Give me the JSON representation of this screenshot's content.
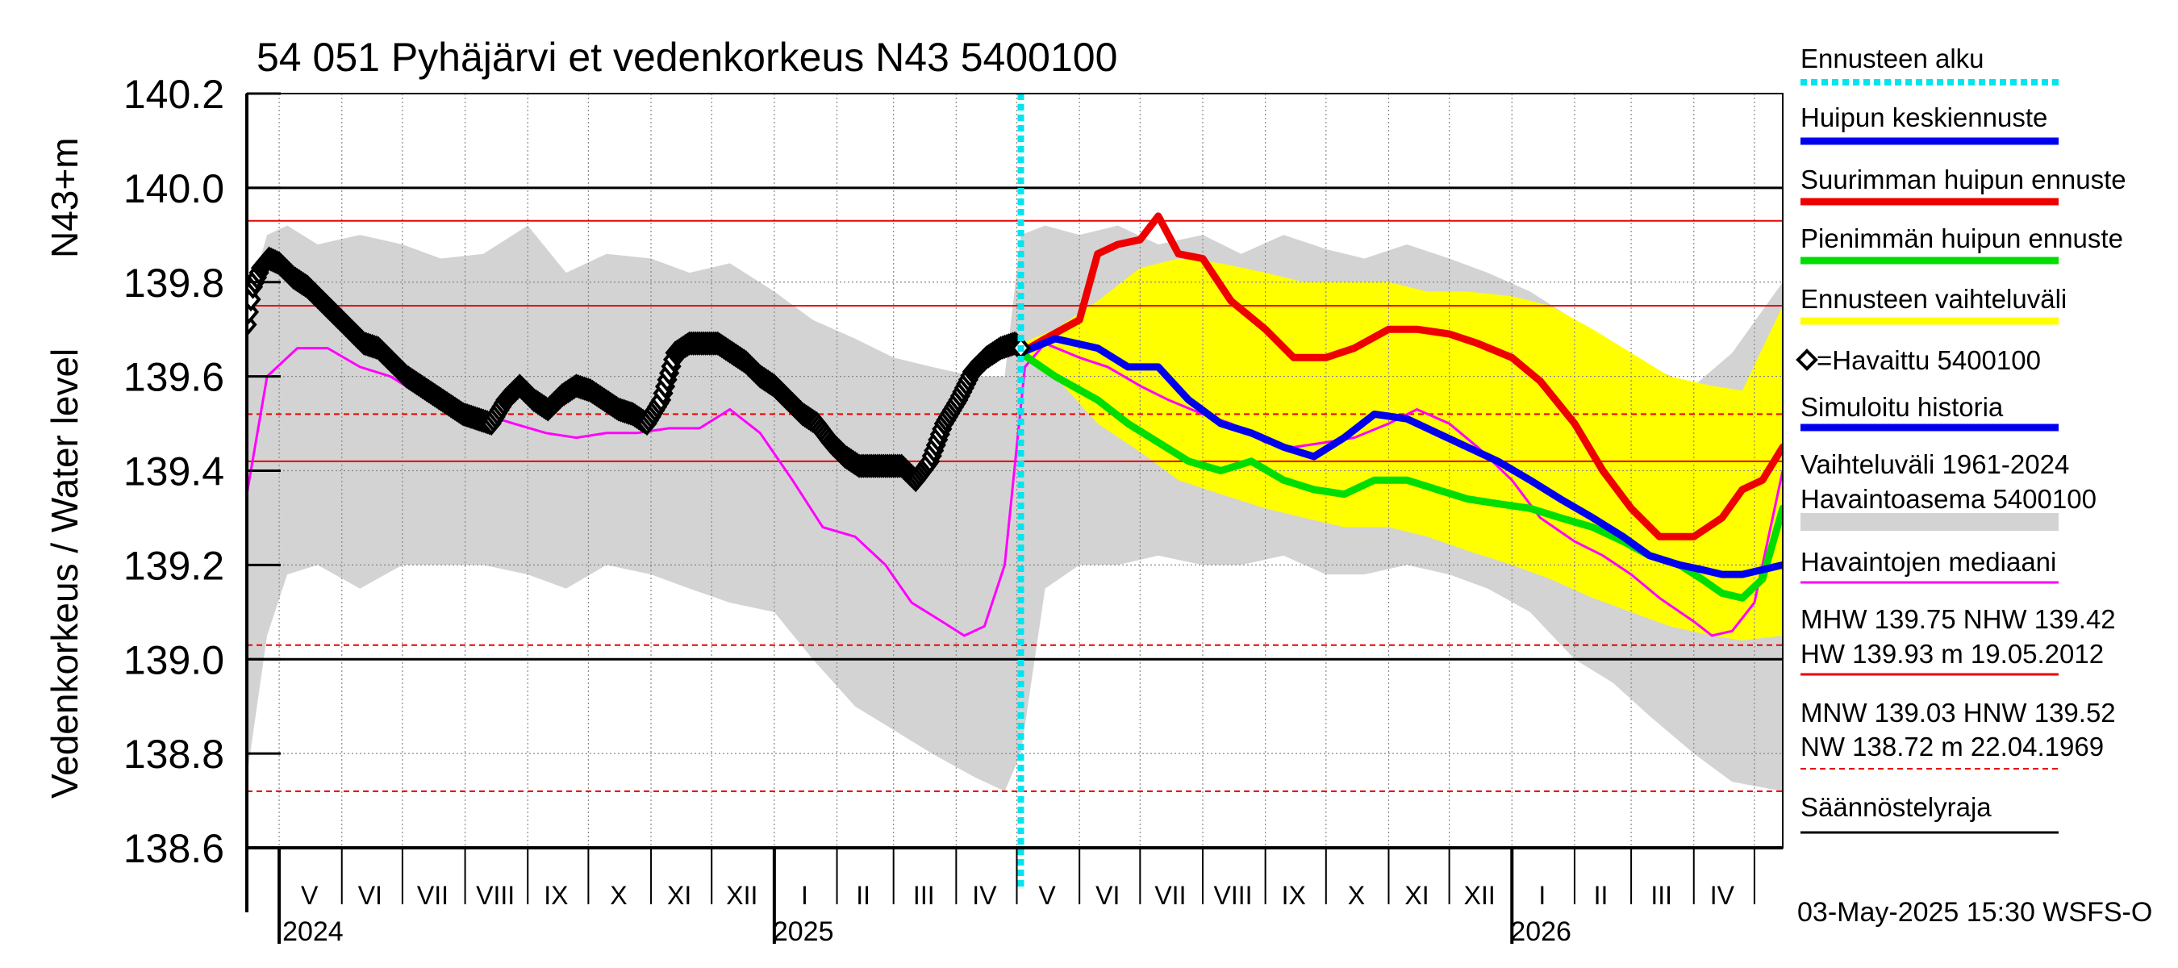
{
  "chart_data": {
    "type": "line",
    "title": "54 051 Pyhäjärvi et vedenkorkeus N43 5400100",
    "ylabel_outer": "Vedenkorkeus / Water level",
    "ylabel_inner": "N43+m",
    "ylim": [
      138.6,
      140.2
    ],
    "yticks": [
      138.6,
      138.8,
      139.0,
      139.2,
      139.4,
      139.6,
      139.8,
      140.0,
      140.2
    ],
    "ytick_labels": [
      "138.6",
      "138.8",
      "139.0",
      "139.2",
      "139.4",
      "139.6",
      "139.8",
      "140.0",
      "140.2"
    ],
    "xlim": [
      "2024-04-15",
      "2026-05-15"
    ],
    "month_labels": [
      {
        "date": "2024-05-16",
        "label": "V"
      },
      {
        "date": "2024-06-15",
        "label": "VI"
      },
      {
        "date": "2024-07-16",
        "label": "VII"
      },
      {
        "date": "2024-08-16",
        "label": "VIII"
      },
      {
        "date": "2024-09-15",
        "label": "IX"
      },
      {
        "date": "2024-10-16",
        "label": "X"
      },
      {
        "date": "2024-11-15",
        "label": "XI"
      },
      {
        "date": "2024-12-16",
        "label": "XII"
      },
      {
        "date": "2025-01-16",
        "label": "I"
      },
      {
        "date": "2025-02-14",
        "label": "II"
      },
      {
        "date": "2025-03-16",
        "label": "III"
      },
      {
        "date": "2025-04-15",
        "label": "IV"
      },
      {
        "date": "2025-05-16",
        "label": "V"
      },
      {
        "date": "2025-06-15",
        "label": "VI"
      },
      {
        "date": "2025-07-16",
        "label": "VII"
      },
      {
        "date": "2025-08-16",
        "label": "VIII"
      },
      {
        "date": "2025-09-15",
        "label": "IX"
      },
      {
        "date": "2025-10-16",
        "label": "X"
      },
      {
        "date": "2025-11-15",
        "label": "XI"
      },
      {
        "date": "2025-12-16",
        "label": "XII"
      },
      {
        "date": "2026-01-16",
        "label": "I"
      },
      {
        "date": "2026-02-14",
        "label": "II"
      },
      {
        "date": "2026-03-16",
        "label": "III"
      },
      {
        "date": "2026-04-15",
        "label": "IV"
      }
    ],
    "month_boundaries": [
      "2024-05-01",
      "2024-06-01",
      "2024-07-01",
      "2024-08-01",
      "2024-09-01",
      "2024-10-01",
      "2024-11-01",
      "2024-12-01",
      "2025-01-01",
      "2025-02-01",
      "2025-03-01",
      "2025-04-01",
      "2025-05-01",
      "2025-06-01",
      "2025-07-01",
      "2025-08-01",
      "2025-09-01",
      "2025-10-01",
      "2025-11-01",
      "2025-12-01",
      "2026-01-01",
      "2026-02-01",
      "2026-03-01",
      "2026-04-01",
      "2026-05-01"
    ],
    "year_marks": [
      {
        "date": "2024-05-01",
        "label": "2024"
      },
      {
        "date": "2025-01-01",
        "label": "2025"
      },
      {
        "date": "2026-01-01",
        "label": "2026"
      }
    ],
    "forecast_start": "2025-05-03",
    "reference_lines": [
      {
        "name": "MHW",
        "value": 139.75,
        "color": "#ee0000",
        "style": "solid"
      },
      {
        "name": "NHW",
        "value": 139.42,
        "color": "#ee0000",
        "style": "solid"
      },
      {
        "name": "HW",
        "value": 139.93,
        "color": "#ee0000",
        "style": "solid"
      },
      {
        "name": "MNW",
        "value": 139.03,
        "color": "#ee0000",
        "style": "dashed"
      },
      {
        "name": "HNW",
        "value": 139.52,
        "color": "#ee0000",
        "style": "dashed"
      },
      {
        "name": "NW",
        "value": 138.72,
        "color": "#ee0000",
        "style": "dashed"
      },
      {
        "name": "Säännöstelyraja upper",
        "value": 140.0,
        "color": "#000000",
        "style": "solid"
      },
      {
        "name": "Säännöstelyraja lower",
        "value": 139.0,
        "color": "#000000",
        "style": "solid"
      }
    ],
    "series": [
      {
        "name": "Vaihteluväli 1961-2024 Havaintoasema 5400100",
        "kind": "band",
        "color": "#d3d3d3",
        "x": [
          "2024-04-15",
          "2024-04-25",
          "2024-05-05",
          "2024-05-20",
          "2024-06-10",
          "2024-07-01",
          "2024-07-20",
          "2024-08-10",
          "2024-09-01",
          "2024-09-20",
          "2024-10-10",
          "2024-11-01",
          "2024-11-20",
          "2024-12-10",
          "2025-01-01",
          "2025-01-20",
          "2025-02-10",
          "2025-03-01",
          "2025-03-20",
          "2025-04-10",
          "2025-04-25",
          "2025-05-03",
          "2025-05-15",
          "2025-06-01",
          "2025-06-20",
          "2025-07-10",
          "2025-08-01",
          "2025-08-20",
          "2025-09-10",
          "2025-10-01",
          "2025-10-20",
          "2025-11-10",
          "2025-12-01",
          "2025-12-20",
          "2026-01-10",
          "2026-02-01",
          "2026-02-20",
          "2026-03-10",
          "2026-04-01",
          "2026-04-20",
          "2026-05-15"
        ],
        "low": [
          138.75,
          139.05,
          139.18,
          139.2,
          139.15,
          139.2,
          139.2,
          139.2,
          139.18,
          139.15,
          139.2,
          139.18,
          139.15,
          139.12,
          139.1,
          139.0,
          138.9,
          138.85,
          138.8,
          138.75,
          138.72,
          138.8,
          139.15,
          139.2,
          139.2,
          139.22,
          139.2,
          139.2,
          139.22,
          139.18,
          139.18,
          139.2,
          139.18,
          139.15,
          139.1,
          139.0,
          138.95,
          138.88,
          138.8,
          138.74,
          138.72
        ],
        "high": [
          139.75,
          139.9,
          139.92,
          139.88,
          139.9,
          139.88,
          139.85,
          139.86,
          139.92,
          139.82,
          139.86,
          139.85,
          139.82,
          139.84,
          139.78,
          139.72,
          139.68,
          139.64,
          139.62,
          139.6,
          139.6,
          139.9,
          139.92,
          139.9,
          139.92,
          139.88,
          139.9,
          139.86,
          139.9,
          139.87,
          139.85,
          139.88,
          139.85,
          139.82,
          139.78,
          139.72,
          139.66,
          139.62,
          139.58,
          139.65,
          139.8
        ]
      },
      {
        "name": "Ennusteen vaihteluväli",
        "kind": "band",
        "color": "#ffff00",
        "x": [
          "2025-05-03",
          "2025-05-20",
          "2025-06-10",
          "2025-07-01",
          "2025-07-20",
          "2025-08-10",
          "2025-09-01",
          "2025-09-20",
          "2025-10-10",
          "2025-11-01",
          "2025-11-20",
          "2025-12-10",
          "2026-01-01",
          "2026-01-20",
          "2026-02-10",
          "2026-03-01",
          "2026-03-20",
          "2026-04-10",
          "2026-04-25",
          "2026-05-15"
        ],
        "low": [
          139.65,
          139.6,
          139.5,
          139.44,
          139.38,
          139.35,
          139.32,
          139.3,
          139.28,
          139.28,
          139.26,
          139.23,
          139.2,
          139.17,
          139.13,
          139.1,
          139.07,
          139.05,
          139.04,
          139.05
        ],
        "high": [
          139.67,
          139.7,
          139.76,
          139.83,
          139.85,
          139.84,
          139.82,
          139.8,
          139.8,
          139.8,
          139.78,
          139.78,
          139.77,
          139.75,
          139.7,
          139.65,
          139.6,
          139.58,
          139.57,
          139.75
        ]
      },
      {
        "name": "Havaintojen mediaani",
        "kind": "line",
        "color": "#ff00ff",
        "x": [
          "2024-04-15",
          "2024-04-25",
          "2024-05-10",
          "2024-05-25",
          "2024-06-10",
          "2024-06-25",
          "2024-07-10",
          "2024-07-25",
          "2024-08-10",
          "2024-08-25",
          "2024-09-10",
          "2024-09-25",
          "2024-10-10",
          "2024-10-25",
          "2024-11-10",
          "2024-11-25",
          "2024-12-10",
          "2024-12-25",
          "2025-01-10",
          "2025-01-25",
          "2025-02-10",
          "2025-02-25",
          "2025-03-10",
          "2025-03-25",
          "2025-04-05",
          "2025-04-15",
          "2025-04-25",
          "2025-05-05",
          "2025-05-15",
          "2025-06-01",
          "2025-06-15",
          "2025-07-01",
          "2025-07-15",
          "2025-08-01",
          "2025-08-15",
          "2025-09-01",
          "2025-09-15",
          "2025-10-01",
          "2025-10-15",
          "2025-11-01",
          "2025-11-15",
          "2025-12-01",
          "2025-12-15",
          "2026-01-01",
          "2026-01-15",
          "2026-02-01",
          "2026-02-15",
          "2026-03-01",
          "2026-03-15",
          "2026-04-01",
          "2026-04-10",
          "2026-04-20",
          "2026-05-01",
          "2026-05-15"
        ],
        "y": [
          139.35,
          139.6,
          139.66,
          139.66,
          139.62,
          139.6,
          139.56,
          139.52,
          139.52,
          139.5,
          139.48,
          139.47,
          139.48,
          139.48,
          139.49,
          139.49,
          139.53,
          139.48,
          139.38,
          139.28,
          139.26,
          139.2,
          139.12,
          139.08,
          139.05,
          139.07,
          139.2,
          139.62,
          139.67,
          139.64,
          139.62,
          139.58,
          139.55,
          139.52,
          139.5,
          139.46,
          139.45,
          139.46,
          139.47,
          139.5,
          139.53,
          139.5,
          139.45,
          139.38,
          139.3,
          139.25,
          139.22,
          139.18,
          139.13,
          139.08,
          139.05,
          139.06,
          139.12,
          139.4
        ]
      },
      {
        "name": "Suurimman huipun ennuste",
        "kind": "line",
        "color": "#ee0000",
        "x": [
          "2025-05-03",
          "2025-05-15",
          "2025-06-01",
          "2025-06-10",
          "2025-06-20",
          "2025-07-01",
          "2025-07-10",
          "2025-07-20",
          "2025-08-01",
          "2025-08-15",
          "2025-09-01",
          "2025-09-15",
          "2025-10-01",
          "2025-10-15",
          "2025-11-01",
          "2025-11-15",
          "2025-12-01",
          "2025-12-15",
          "2026-01-01",
          "2026-01-15",
          "2026-02-01",
          "2026-02-15",
          "2026-03-01",
          "2026-03-15",
          "2026-04-01",
          "2026-04-15",
          "2026-04-25",
          "2026-05-05",
          "2026-05-15"
        ],
        "y": [
          139.65,
          139.68,
          139.72,
          139.86,
          139.88,
          139.89,
          139.94,
          139.86,
          139.85,
          139.76,
          139.7,
          139.64,
          139.64,
          139.66,
          139.7,
          139.7,
          139.69,
          139.67,
          139.64,
          139.59,
          139.5,
          139.4,
          139.32,
          139.26,
          139.26,
          139.3,
          139.36,
          139.38,
          139.45
        ]
      },
      {
        "name": "Huipun keskiennuste",
        "kind": "line",
        "color": "#0000ee",
        "x": [
          "2025-05-03",
          "2025-05-20",
          "2025-06-10",
          "2025-06-25",
          "2025-07-10",
          "2025-07-25",
          "2025-08-10",
          "2025-08-25",
          "2025-09-10",
          "2025-09-25",
          "2025-10-10",
          "2025-10-25",
          "2025-11-10",
          "2025-11-25",
          "2025-12-10",
          "2025-12-25",
          "2026-01-10",
          "2026-01-25",
          "2026-02-10",
          "2026-02-25",
          "2026-03-10",
          "2026-03-25",
          "2026-04-05",
          "2026-04-15",
          "2026-04-25",
          "2026-05-05",
          "2026-05-15"
        ],
        "y": [
          139.65,
          139.68,
          139.66,
          139.62,
          139.62,
          139.55,
          139.5,
          139.48,
          139.45,
          139.43,
          139.47,
          139.52,
          139.51,
          139.48,
          139.45,
          139.42,
          139.38,
          139.34,
          139.3,
          139.26,
          139.22,
          139.2,
          139.19,
          139.18,
          139.18,
          139.19,
          139.2
        ]
      },
      {
        "name": "Pienimmän huipun ennuste",
        "kind": "line",
        "color": "#00dd00",
        "x": [
          "2025-05-03",
          "2025-05-20",
          "2025-06-10",
          "2025-06-25",
          "2025-07-10",
          "2025-07-25",
          "2025-08-10",
          "2025-08-25",
          "2025-09-10",
          "2025-09-25",
          "2025-10-10",
          "2025-10-25",
          "2025-11-10",
          "2025-11-25",
          "2025-12-10",
          "2025-12-25",
          "2026-01-10",
          "2026-01-25",
          "2026-02-10",
          "2026-02-25",
          "2026-03-10",
          "2026-03-25",
          "2026-04-05",
          "2026-04-15",
          "2026-04-25",
          "2026-05-05",
          "2026-05-15"
        ],
        "y": [
          139.65,
          139.6,
          139.55,
          139.5,
          139.46,
          139.42,
          139.4,
          139.42,
          139.38,
          139.36,
          139.35,
          139.38,
          139.38,
          139.36,
          139.34,
          139.33,
          139.32,
          139.3,
          139.28,
          139.25,
          139.22,
          139.2,
          139.17,
          139.14,
          139.13,
          139.17,
          139.32
        ]
      },
      {
        "name": "Simuloitu historia",
        "kind": "line",
        "color": "#0000ee",
        "x": [
          "2024-04-15",
          "2024-04-20",
          "2024-04-25",
          "2024-04-28"
        ],
        "y": [
          139.72,
          139.8,
          139.84,
          139.85
        ]
      },
      {
        "name": "=Havaittu 5400100",
        "kind": "markers",
        "color": "#000000",
        "x": [
          "2024-04-15",
          "2024-04-18",
          "2024-04-22",
          "2024-04-26",
          "2024-05-01",
          "2024-05-08",
          "2024-05-15",
          "2024-05-22",
          "2024-05-29",
          "2024-06-05",
          "2024-06-12",
          "2024-06-19",
          "2024-06-26",
          "2024-07-03",
          "2024-07-10",
          "2024-07-17",
          "2024-07-24",
          "2024-07-31",
          "2024-08-07",
          "2024-08-14",
          "2024-08-21",
          "2024-08-28",
          "2024-09-04",
          "2024-09-11",
          "2024-09-18",
          "2024-09-25",
          "2024-10-02",
          "2024-10-09",
          "2024-10-16",
          "2024-10-23",
          "2024-10-30",
          "2024-11-06",
          "2024-11-13",
          "2024-11-20",
          "2024-11-27",
          "2024-12-04",
          "2024-12-11",
          "2024-12-18",
          "2024-12-25",
          "2025-01-01",
          "2025-01-08",
          "2025-01-15",
          "2025-01-22",
          "2025-01-29",
          "2025-02-05",
          "2025-02-12",
          "2025-02-19",
          "2025-02-26",
          "2025-03-05",
          "2025-03-12",
          "2025-03-19",
          "2025-03-26",
          "2025-04-02",
          "2025-04-09",
          "2025-04-16",
          "2025-04-23",
          "2025-04-30",
          "2025-05-03"
        ],
        "y": [
          139.71,
          139.79,
          139.83,
          139.85,
          139.84,
          139.81,
          139.79,
          139.76,
          139.73,
          139.7,
          139.67,
          139.66,
          139.63,
          139.6,
          139.58,
          139.56,
          139.54,
          139.52,
          139.51,
          139.5,
          139.55,
          139.58,
          139.55,
          139.53,
          139.56,
          139.58,
          139.57,
          139.55,
          139.53,
          139.52,
          139.5,
          139.55,
          139.65,
          139.67,
          139.67,
          139.67,
          139.65,
          139.63,
          139.6,
          139.58,
          139.55,
          139.52,
          139.5,
          139.46,
          139.43,
          139.41,
          139.41,
          139.41,
          139.41,
          139.38,
          139.42,
          139.5,
          139.55,
          139.61,
          139.64,
          139.66,
          139.67,
          139.66
        ]
      }
    ],
    "legend": [
      {
        "label": "Ennusteen alku",
        "color": "#00e5ee",
        "style": "dotted-thick"
      },
      {
        "label": "Huipun keskiennuste",
        "color": "#0000ee",
        "style": "solid-thick"
      },
      {
        "label": "Suurimman huipun ennuste",
        "color": "#ee0000",
        "style": "solid-thick"
      },
      {
        "label": "Pienimmän huipun ennuste",
        "color": "#00dd00",
        "style": "solid-thick"
      },
      {
        "label": "Ennusteen vaihteluväli",
        "color": "#ffff00",
        "style": "solid-thick"
      },
      {
        "label": "=Havaittu 5400100",
        "color": "#000000",
        "style": "marker"
      },
      {
        "label": "Simuloitu historia",
        "color": "#0000ee",
        "style": "solid-thick"
      },
      {
        "label": "Vaihteluväli 1961-2024",
        "label2": " Havaintoasema 5400100",
        "color": "#d3d3d3",
        "style": "band"
      },
      {
        "label": "Havaintojen mediaani",
        "color": "#ff00ff",
        "style": "solid-thin"
      },
      {
        "label": "MHW 139.75 NHW 139.42",
        "label2": "HW 139.93 m 19.05.2012",
        "color": "#ee0000",
        "style": "solid-thin"
      },
      {
        "label": "MNW 139.03 HNW 139.52",
        "label2": "NW 138.72 m 22.04.1969",
        "color": "#ee0000",
        "style": "dashed"
      },
      {
        "label": "Säännöstelyraja",
        "color": "#000000",
        "style": "solid-thin"
      }
    ],
    "footer": "03-May-2025 15:30 WSFS-O"
  }
}
